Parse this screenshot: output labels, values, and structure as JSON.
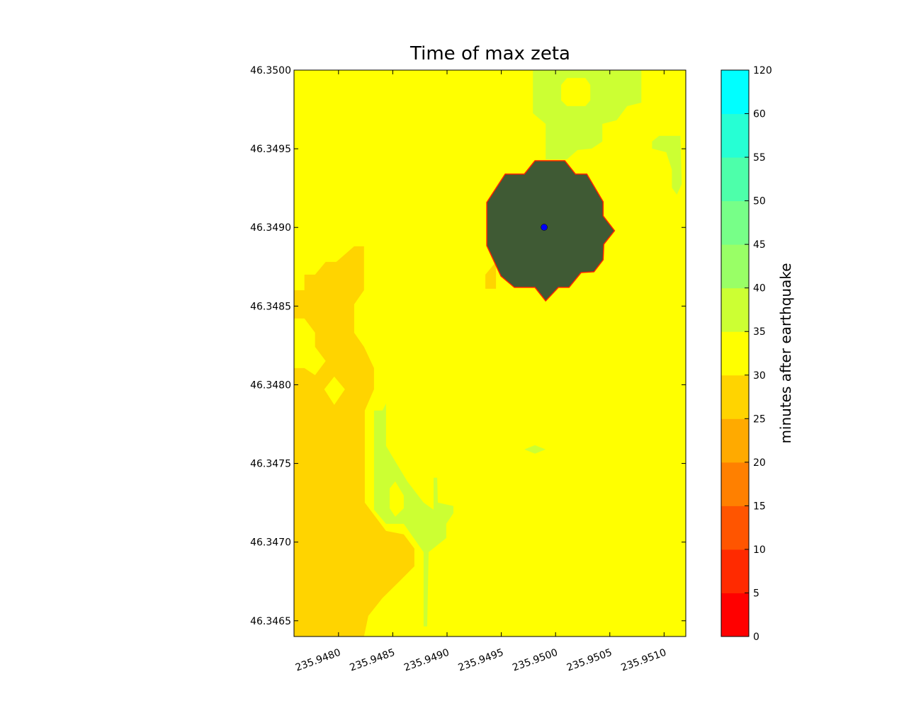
{
  "chart_data": {
    "type": "contour",
    "title": "Time of max zeta",
    "xlim": [
      235.94759,
      235.9512
    ],
    "ylim": [
      46.3464,
      46.35
    ],
    "xticks": [
      {
        "value": 235.948,
        "label": "235.9480"
      },
      {
        "value": 235.9485,
        "label": "235.9485"
      },
      {
        "value": 235.949,
        "label": "235.9490"
      },
      {
        "value": 235.9495,
        "label": "235.9495"
      },
      {
        "value": 235.95,
        "label": "235.9500"
      },
      {
        "value": 235.9505,
        "label": "235.9505"
      },
      {
        "value": 235.951,
        "label": "235.9510"
      }
    ],
    "yticks": [
      46.3465,
      {
        "value": 46.347,
        "label": "46.3470"
      },
      46.3475,
      {
        "value": 46.348,
        "label": "46.3480"
      },
      46.3485,
      {
        "value": 46.349,
        "label": "46.3490"
      },
      46.3495,
      {
        "value": 46.35,
        "label": "46.3500"
      }
    ],
    "base_level": 30,
    "regions": [
      {
        "level": 25,
        "x": [
          235.947588,
          235.947686,
          235.947686,
          235.947784,
          235.947882,
          235.94798,
          235.948144,
          235.948235,
          235.948235,
          235.948144,
          235.948144,
          235.948235,
          235.948327,
          235.948327,
          235.948242,
          235.948242,
          235.948438,
          235.948601,
          235.948699,
          235.948699,
          235.948569,
          235.948405,
          235.948275,
          235.948235,
          235.947588
        ],
        "y": [
          46.348601,
          46.348601,
          46.3487,
          46.3487,
          46.348781,
          46.348781,
          46.34888,
          46.34888,
          46.348601,
          46.348511,
          46.348331,
          46.348241,
          46.348106,
          46.347971,
          46.347836,
          46.347251,
          46.347071,
          46.347049,
          46.346959,
          46.346846,
          46.346756,
          46.346644,
          46.346531,
          46.3464,
          46.3464
        ]
      },
      {
        "level": 30,
        "x": [
          235.947869,
          235.947961,
          235.948059,
          235.947961
        ],
        "y": [
          46.347971,
          46.348052,
          46.347971,
          46.347872
        ]
      },
      {
        "level": 30,
        "x": [
          235.947588,
          235.947686,
          235.947784,
          235.947784,
          235.947882,
          235.947784,
          235.947686,
          235.947588
        ],
        "y": [
          46.348421,
          46.348421,
          46.348331,
          46.348241,
          46.348151,
          46.348061,
          46.348106,
          46.348106
        ]
      },
      {
        "level": 25,
        "x": [
          235.949353,
          235.949451,
          235.949451,
          235.949353
        ],
        "y": [
          46.3487,
          46.348781,
          46.34861,
          46.34861
        ]
      },
      {
        "level": 35,
        "x": [
          235.949791,
          235.950791,
          235.950791,
          235.95066,
          235.950562,
          235.950431,
          235.950431,
          235.950333,
          235.950203,
          235.950105,
          235.949909,
          235.949909,
          235.949791
        ],
        "y": [
          46.35,
          46.35,
          46.349793,
          46.349771,
          46.349681,
          46.349658,
          46.349546,
          46.349501,
          46.349492,
          46.349433,
          46.349433,
          46.349658,
          46.349726
        ]
      },
      {
        "level": 30,
        "x": [
          235.950105,
          235.950275,
          235.95032,
          235.95032,
          235.950275,
          235.950105,
          235.950052,
          235.950052
        ],
        "y": [
          46.34995,
          46.34995,
          46.349906,
          46.349807,
          46.349771,
          46.349771,
          46.349807,
          46.349906
        ]
      },
      {
        "level": 35,
        "x": [
          235.950889,
          235.950954,
          235.95115,
          235.951163,
          235.951118,
          235.951072,
          235.951072,
          235.95102,
          235.950889
        ],
        "y": [
          46.349546,
          46.349582,
          46.349582,
          46.349276,
          46.349208,
          46.349253,
          46.349366,
          46.349478,
          46.349501
        ]
      },
      {
        "level": 35,
        "x": [
          235.948327,
          235.948405,
          235.948438,
          235.948438,
          235.948634,
          235.948784,
          235.948876,
          235.948876,
          235.948909,
          235.948915,
          235.949059,
          235.949059,
          235.948993,
          235.948993,
          235.94883,
          235.948817,
          235.948784,
          235.948784,
          235.948601,
          235.948438,
          235.948327,
          235.948327
        ],
        "y": [
          46.347836,
          46.347836,
          46.347881,
          46.347611,
          46.347386,
          46.347251,
          46.347206,
          46.347409,
          46.347409,
          46.347251,
          46.347229,
          46.347184,
          46.347116,
          46.347026,
          46.346936,
          46.346464,
          46.346464,
          46.346936,
          46.347116,
          46.347116,
          46.347206,
          46.347566
        ]
      },
      {
        "level": 30,
        "x": [
          235.948471,
          235.948523,
          235.948601,
          235.948601,
          235.948523,
          235.948471
        ],
        "y": [
          46.347341,
          46.347386,
          46.347296,
          46.347215,
          46.347161,
          46.347215
        ]
      },
      {
        "level": 35,
        "x": [
          235.949712,
          235.94981,
          235.949909,
          235.94981
        ],
        "y": [
          46.347589,
          46.347616,
          46.347589,
          46.347562
        ]
      }
    ],
    "overlay": {
      "color": "#3f5a34",
      "edge_color": "#ff2200",
      "x": [
        235.949366,
        235.949536,
        235.949712,
        235.94981,
        235.950085,
        235.950183,
        235.950288,
        235.950438,
        235.950438,
        235.950543,
        235.950444,
        235.950438,
        235.950353,
        235.950235,
        235.950124,
        235.950026,
        235.949909,
        235.94981,
        235.949621,
        235.949497,
        235.949366
      ],
      "y": [
        46.349159,
        46.349339,
        46.349339,
        46.349424,
        46.349424,
        46.349339,
        46.349339,
        46.349163,
        46.349073,
        46.348979,
        46.348893,
        46.348794,
        46.348718,
        46.348713,
        46.348619,
        46.348619,
        46.348533,
        46.348619,
        46.348619,
        46.348691,
        46.348884
      ]
    },
    "point": {
      "x": 235.949895,
      "y": 46.349001,
      "color": "#0000ff"
    },
    "colorbar": {
      "label": "minutes after earthquake",
      "levels": [
        0,
        5,
        10,
        15,
        20,
        25,
        30,
        35,
        40,
        45,
        50,
        55,
        60,
        120
      ],
      "colors": [
        "#ff0000",
        "#ff2a00",
        "#ff5500",
        "#ff8000",
        "#ffaa00",
        "#ffd400",
        "#ffff00",
        "#ccff33",
        "#99ff66",
        "#77ff88",
        "#4dffaa",
        "#26ffd4",
        "#00ffff"
      ]
    }
  }
}
